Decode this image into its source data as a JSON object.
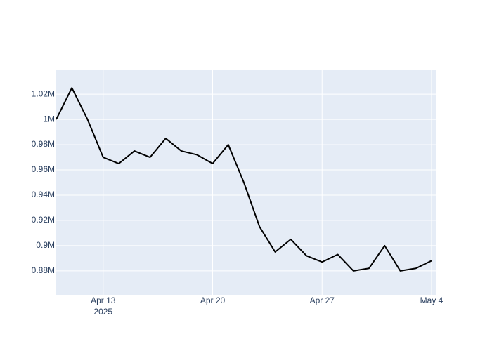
{
  "chart_data": {
    "type": "line",
    "x": [
      "2025-04-10",
      "2025-04-11",
      "2025-04-12",
      "2025-04-13",
      "2025-04-14",
      "2025-04-15",
      "2025-04-16",
      "2025-04-17",
      "2025-04-18",
      "2025-04-19",
      "2025-04-20",
      "2025-04-21",
      "2025-04-22",
      "2025-04-23",
      "2025-04-24",
      "2025-04-25",
      "2025-04-26",
      "2025-04-27",
      "2025-04-28",
      "2025-04-29",
      "2025-04-30",
      "2025-05-01",
      "2025-05-02",
      "2025-05-03",
      "2025-05-04"
    ],
    "series": [
      {
        "color": "#000000",
        "values": [
          1000000,
          1025000,
          1000000,
          970000,
          965000,
          975000,
          970000,
          985000,
          975000,
          972000,
          965000,
          980000,
          950000,
          915000,
          895000,
          905000,
          892000,
          887000,
          893000,
          880000,
          882000,
          900000,
          880000,
          882000,
          888000
        ]
      }
    ],
    "xlim": [
      "2025-04-10",
      "2025-05-04"
    ],
    "xticks": [
      {
        "value": "2025-04-13",
        "label": "Apr 13\n2025"
      },
      {
        "value": "2025-04-20",
        "label": "Apr 20"
      },
      {
        "value": "2025-04-27",
        "label": "Apr 27"
      },
      {
        "value": "2025-05-04",
        "label": "May 4"
      }
    ],
    "ylim": [
      861000,
      1039000
    ],
    "yticks": [
      {
        "value": 880000,
        "label": "0.88M"
      },
      {
        "value": 900000,
        "label": "0.9M"
      },
      {
        "value": 920000,
        "label": "0.92M"
      },
      {
        "value": 940000,
        "label": "0.94M"
      },
      {
        "value": 960000,
        "label": "0.96M"
      },
      {
        "value": 980000,
        "label": "0.98M"
      },
      {
        "value": 1000000,
        "label": "1M"
      },
      {
        "value": 1020000,
        "label": "1.02M"
      }
    ],
    "grid": true,
    "plot_background": "#e5ecf6"
  }
}
